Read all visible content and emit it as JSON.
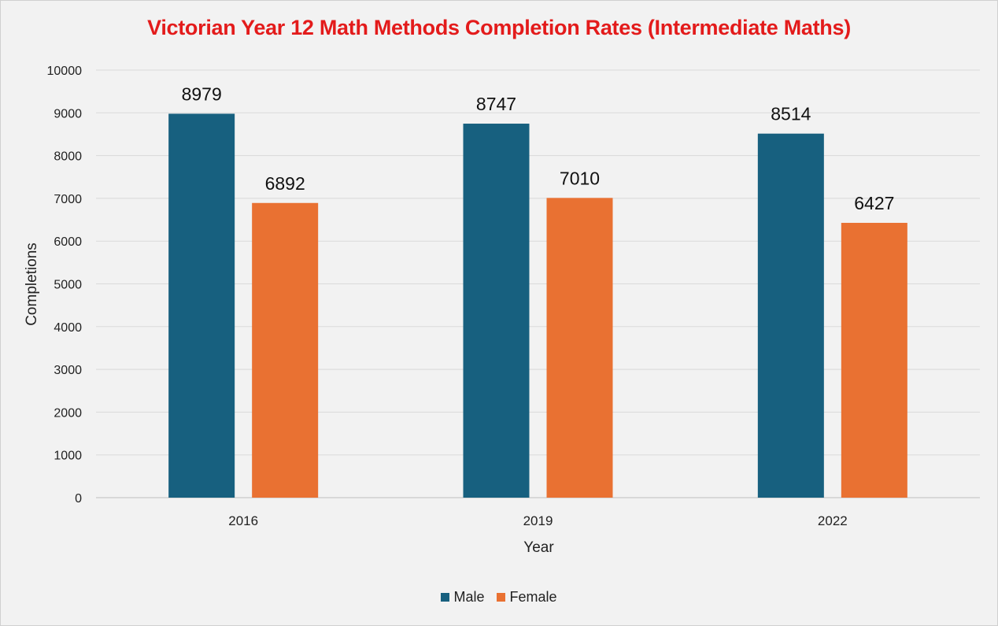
{
  "chart_data": {
    "type": "bar",
    "title": "Victorian Year 12 Math Methods Completion Rates (Intermediate Maths)",
    "xlabel": "Year",
    "ylabel": "Completions",
    "categories": [
      "2016",
      "2019",
      "2022"
    ],
    "series": [
      {
        "name": "Male",
        "values": [
          8979,
          8747,
          8514
        ],
        "color": "#17607f"
      },
      {
        "name": "Female",
        "values": [
          6892,
          7010,
          6427
        ],
        "color": "#e97132"
      }
    ],
    "ylim": [
      0,
      10000
    ],
    "yticks": [
      0,
      1000,
      2000,
      3000,
      4000,
      5000,
      6000,
      7000,
      8000,
      9000,
      10000
    ],
    "grid": true,
    "legend_position": "bottom",
    "title_color": "#e31b1b"
  }
}
